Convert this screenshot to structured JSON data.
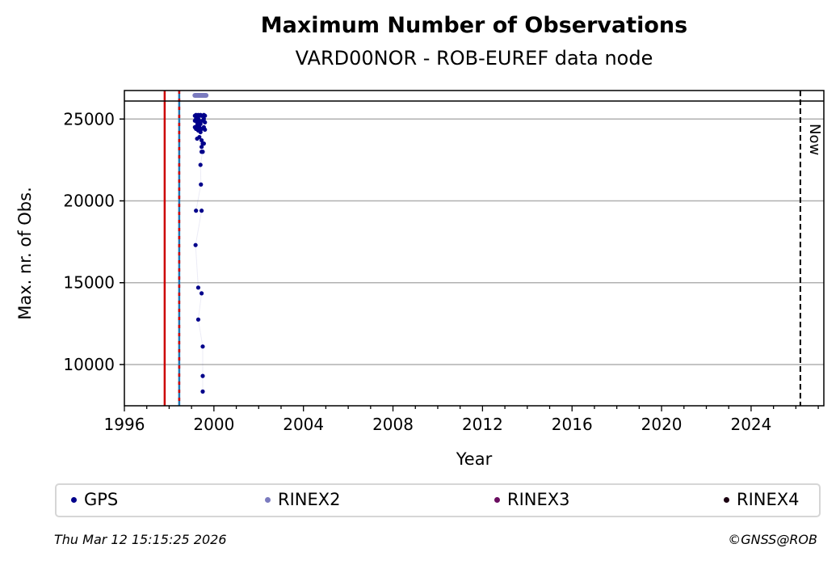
{
  "chart_data": {
    "type": "scatter",
    "title": "Maximum Number of Observations",
    "subtitle": "VARD00NOR - ROB-EUREF data node",
    "xlabel": "Year",
    "ylabel": "Max. nr. of Obs.",
    "xlim": [
      1996,
      2027.25
    ],
    "ylim": [
      7480,
      26100
    ],
    "xticks": [
      1996,
      2000,
      2004,
      2008,
      2012,
      2016,
      2020,
      2024
    ],
    "yticks": [
      10000,
      15000,
      20000,
      25000
    ],
    "grid": "y",
    "legend_placement": "bottom",
    "vlines": [
      {
        "x": 1997.8,
        "color": "#cc0000",
        "style": "solid"
      },
      {
        "x": 1998.45,
        "color": "#cc0000",
        "color2": "#1f77b4",
        "style": "dashed"
      },
      {
        "x": 2026.2,
        "color": "#000000",
        "style": "dashed",
        "label": "Now"
      }
    ],
    "rinex2_bar": {
      "x": [
        1999.15,
        1999.65
      ],
      "color": "#7b7bbf"
    },
    "series": [
      {
        "name": "GPS",
        "color": "#00008b",
        "points": [
          [
            1999.15,
            25200
          ],
          [
            1999.2,
            25250
          ],
          [
            1999.25,
            25200
          ],
          [
            1999.3,
            25250
          ],
          [
            1999.35,
            25200
          ],
          [
            1999.4,
            25250
          ],
          [
            1999.45,
            25200
          ],
          [
            1999.55,
            25250
          ],
          [
            1999.6,
            25200
          ],
          [
            1999.15,
            24900
          ],
          [
            1999.2,
            25000
          ],
          [
            1999.25,
            24800
          ],
          [
            1999.3,
            25000
          ],
          [
            1999.35,
            24900
          ],
          [
            1999.4,
            24700
          ],
          [
            1999.5,
            24900
          ],
          [
            1999.55,
            25000
          ],
          [
            1999.6,
            24800
          ],
          [
            1999.15,
            24500
          ],
          [
            1999.2,
            24400
          ],
          [
            1999.25,
            24600
          ],
          [
            1999.3,
            24300
          ],
          [
            1999.35,
            24500
          ],
          [
            1999.4,
            24200
          ],
          [
            1999.45,
            24400
          ],
          [
            1999.55,
            24500
          ],
          [
            1999.6,
            24350
          ],
          [
            1999.25,
            23800
          ],
          [
            1999.35,
            23900
          ],
          [
            1999.45,
            23700
          ],
          [
            1999.5,
            23500
          ],
          [
            1999.45,
            23300
          ],
          [
            1999.45,
            23000
          ],
          [
            1999.5,
            23000
          ],
          [
            1999.55,
            23500
          ],
          [
            1999.4,
            22200
          ],
          [
            1999.42,
            21000
          ],
          [
            1999.2,
            19400
          ],
          [
            1999.45,
            19400
          ],
          [
            1999.18,
            17300
          ],
          [
            1999.3,
            14700
          ],
          [
            1999.45,
            14350
          ],
          [
            1999.3,
            12750
          ],
          [
            1999.5,
            11100
          ],
          [
            1999.5,
            9300
          ],
          [
            1999.5,
            8350
          ]
        ]
      },
      {
        "name": "RINEX2",
        "color": "#7b7bbf",
        "points": []
      },
      {
        "name": "RINEX3",
        "color": "#6a0d5f",
        "points": []
      },
      {
        "name": "RINEX4",
        "color": "#1a0010",
        "points": []
      }
    ]
  },
  "footer": {
    "timestamp": "Thu Mar 12 15:15:25 2026",
    "copyright": "©GNSS@ROB"
  }
}
